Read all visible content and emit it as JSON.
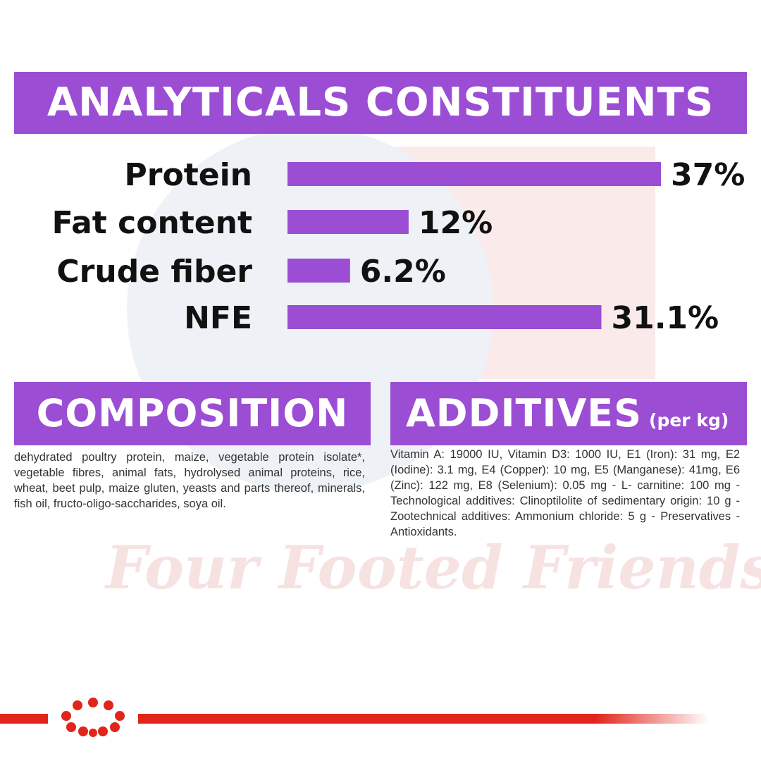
{
  "analytics": {
    "title": "ANALYTICALS CONSTITUENTS"
  },
  "chart_data": {
    "type": "bar",
    "orientation": "horizontal",
    "categories": [
      "Protein",
      "Fat content",
      "Crude fiber",
      "NFE"
    ],
    "values": [
      37,
      12,
      6.2,
      31.1
    ],
    "value_labels": [
      "37%",
      "12%",
      "6.2%",
      "31.1%"
    ],
    "unit": "%",
    "xlim": [
      0,
      37
    ],
    "grid": false,
    "legend": "none",
    "bar_color": "#9b4dd3"
  },
  "composition": {
    "title": "COMPOSITION",
    "text": "dehydrated poultry protein, maize, vegetable protein isolate*, vegetable fibres, animal fats, hydrolysed animal proteins, rice, wheat, beet pulp, maize gluten, yeasts and parts thereof, minerals, fish oil, fructo-oligo-saccharides, soya oil."
  },
  "additives": {
    "title": "ADDITIVES",
    "subtitle": "(per kg)",
    "text": "Vitamin A: 19000 IU, Vitamin D3: 1000 IU, E1 (Iron): 31 mg, E2 (Iodine): 3.1 mg, E4 (Copper): 10 mg, E5 (Manganese): 41mg, E6 (Zinc): 122 mg, E8 (Selenium): 0.05 mg - L- carnitine: 100 mg - Technological additives: Clinoptilolite of sedimentary origin: 10 g -Zootechnical additives: Ammonium chloride: 5 g - Preservatives - Antioxidants."
  },
  "watermark": {
    "text": "Four Footed Friends"
  },
  "colors": {
    "accent": "#9b4dd3",
    "brand_red": "#e1251b"
  },
  "footer": {
    "logo": "royal-canin-crown-logo"
  }
}
